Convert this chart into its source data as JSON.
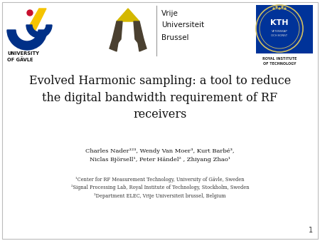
{
  "background_color": "#ffffff",
  "title_line1": "Evolved Harmonic sampling: a tool to reduce",
  "title_line2": "the digital bandwidth requirement of RF",
  "title_line3": "receivers",
  "title_fontsize": 11.5,
  "title_color": "#111111",
  "authors_line1": "Charles Nader¹²³, Wendy Van Moer³, Kurt Barbé³,",
  "authors_line2": "Niclas Björsell¹, Peter Händel² , Zhiyang Zhao¹",
  "authors_fontsize": 6.0,
  "authors_color": "#111111",
  "affil1": "¹Center for RF Measurement Technology, University of Gävle, Sweden",
  "affil2": "²Signal Processing Lab, Royal Institute of Technology, Stockholm, Sweden",
  "affil3": "³Department ELEC, Vrije Universiteit brussel, Belgium",
  "affil_fontsize": 4.8,
  "affil_color": "#333333",
  "page_number": "1",
  "page_number_fontsize": 7,
  "border_color": "#bbbbbb",
  "gavle_color1": "#003087",
  "gavle_color2": "#f5c400",
  "gavle_color3": "#c8102e",
  "gavle_text_color": "#111111",
  "vub_color": "#4a4030",
  "vub_yellow": "#d4b800",
  "kth_blue": "#003399",
  "kth_gold": "#b8a000",
  "vrije_text": "Vrije\nUniversiteit\nBrussel",
  "kth_sub1": "VETENSKAP",
  "kth_sub2": "OCH KONST",
  "royal1": "ROYAL INSTITUTE",
  "royal2": "OF TECHNOLOGY"
}
